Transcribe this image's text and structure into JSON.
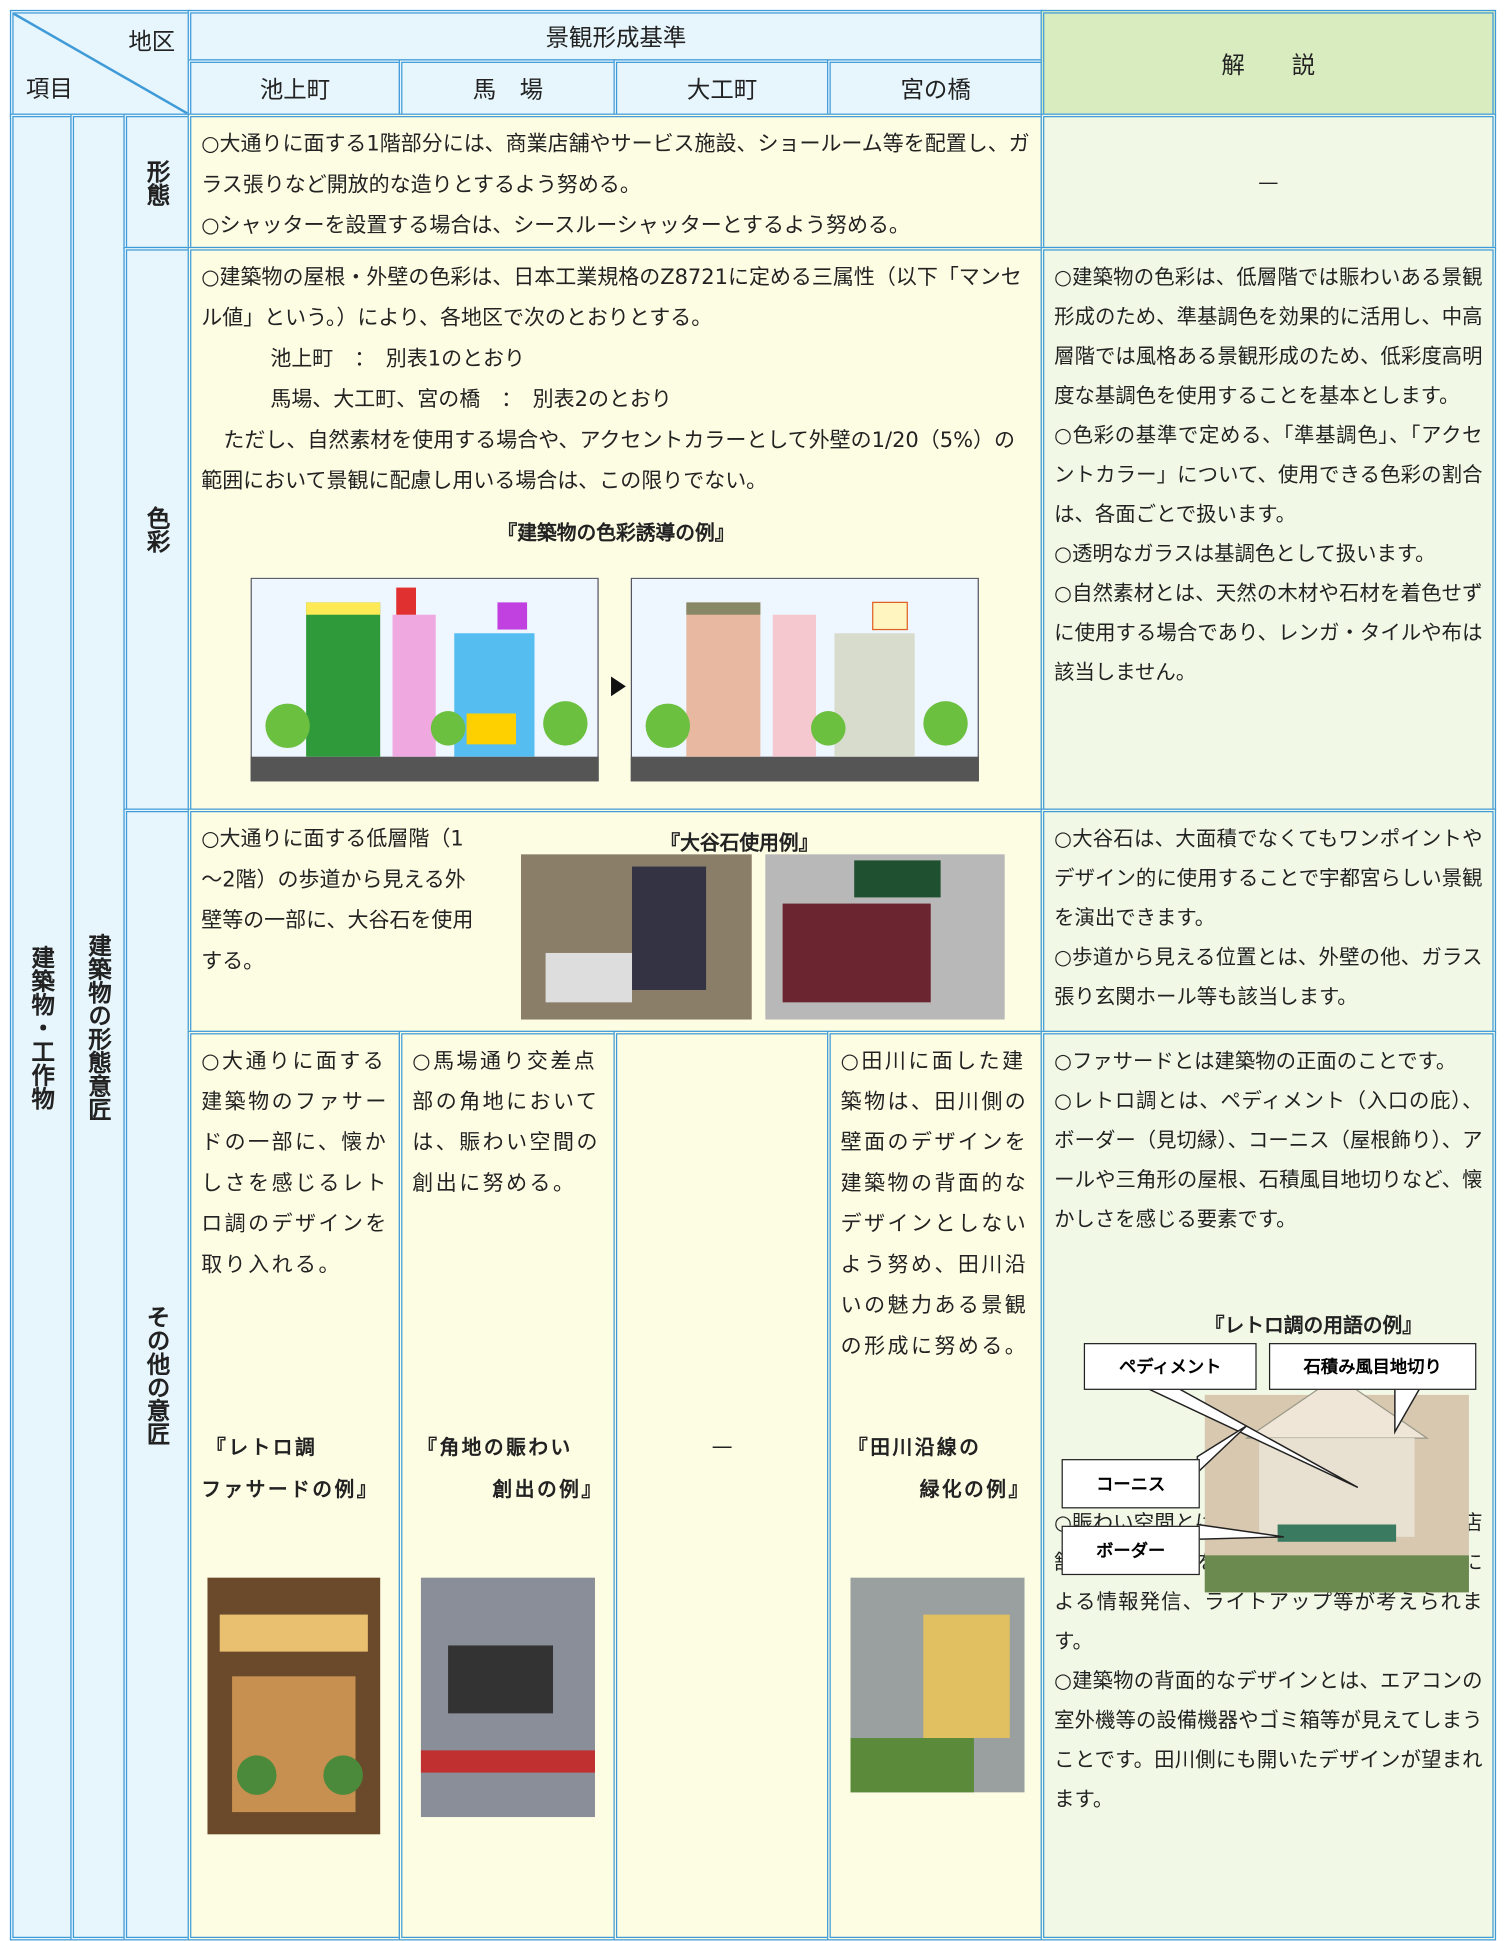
{
  "header": {
    "district_label": "地区",
    "item_label": "項目",
    "standard_title": "景観形成基準",
    "districts": [
      "池上町",
      "馬　場",
      "大工町",
      "宮の橋"
    ],
    "commentary_title": "解　　説"
  },
  "category": "建築物・工作物",
  "subcategory": "建築物の形態意匠",
  "form": {
    "item": "形態",
    "standard": [
      "○大通りに面する1階部分には、商業店舗やサービス施設、ショールーム等を配置し、ガラス張りなど開放的な造りとするよう努める。",
      "○シャッターを設置する場合は、シースルーシャッターとするよう努める。"
    ],
    "commentary": "—"
  },
  "color": {
    "item": "色彩",
    "standard": [
      "○建築物の屋根・外壁の色彩は、日本工業規格のZ8721に定める三属性（以下「マンセル値」という。）により、各地区で次のとおりとする。",
      "池上町　：　別表1のとおり",
      "馬場、大工町、宮の橋　：　別表2のとおり",
      "ただし、自然素材を使用する場合や、アクセントカラーとして外壁の1/20（5%）の範囲において景観に配慮し用いる場合は、この限りでない。"
    ],
    "figure_caption": "『建築物の色彩誘導の例』",
    "commentary": [
      "○建築物の色彩は、低層階では賑わいある景観形成のため、準基調色を効果的に活用し、中高層階では風格ある景観形成のため、低彩度高明度な基調色を使用することを基本とします。",
      "○色彩の基準で定める、「準基調色」、「アクセントカラー」について、使用できる色彩の割合は、各面ごとで扱います。",
      "○透明なガラスは基調色として扱います。",
      "○自然素材とは、天然の木材や石材を着色せずに使用する場合であり、レンガ・タイルや布は該当しません。"
    ]
  },
  "other": {
    "item": "その他の意匠",
    "oya": {
      "standard": "○大通りに面する低層階（1～2階）の歩道から見える外壁等の一部に、大谷石を使用する。",
      "figure_caption": "『大谷石使用例』",
      "commentary": [
        "○大谷石は、大面積でなくてもワンポイントやデザイン的に使用することで宇都宮らしい景観を演出できます。",
        "○歩道から見える位置とは、外壁の他、ガラス張り玄関ホール等も該当します。"
      ]
    },
    "districts": [
      {
        "text": "○大通りに面する建築物のファサードの一部に、懐かしさを感じるレトロ調のデザインを取り入れる。",
        "caption": [
          "『レトロ調",
          "ファサードの例』"
        ]
      },
      {
        "text": "○馬場通り交差点部の角地においては、賑わい空間の創出に努める。",
        "caption": [
          "『角地の賑わい",
          "創出の例』"
        ]
      },
      {
        "text": "—"
      },
      {
        "text": "○田川に面した建築物は、田川側の壁面のデザインを建築物の背面的なデザインとしないよう努め、田川沿いの魅力ある景観の形成に努める。",
        "caption": [
          "『田川沿線の",
          "緑化の例』"
        ]
      }
    ],
    "commentary": [
      "○ファサードとは建築物の正面のことです。",
      "○レトロ調とは、ペディメント（入口の庇）、ボーダー（見切縁）、コーニス（屋根飾り）、アールや三角形の屋根、石積風目地切りなど、懐かしさを感じる要素です。",
      "○賑わい空間とは、ガラス張りなど開放的な店舗や過度な電飾を伴わない屋外型映像装置等による情報発信、ライトアップ等が考えられます。",
      "○建築物の背面的なデザインとは、エアコンの室外機等の設備機器やゴミ箱等が見えてしまうことです。田川側にも開いたデザインが望まれます。"
    ],
    "figure_caption": "『レトロ調の用語の例』",
    "figure_labels": [
      "ペディメント",
      "石積み風目地切り",
      "コーニス",
      "ボーダー"
    ]
  }
}
